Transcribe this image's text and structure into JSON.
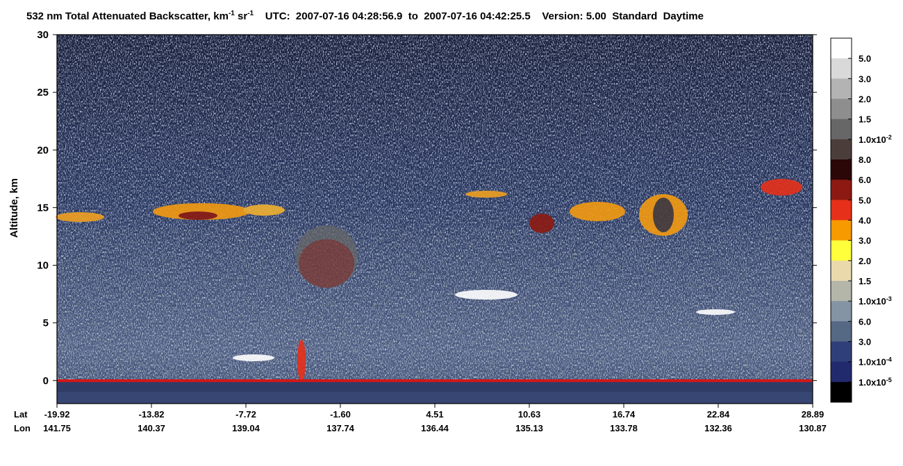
{
  "chart_data": {
    "type": "curtain",
    "title": [
      "532 nm Total Attenuated Backscatter, km",
      {
        "sup": "-1"
      },
      " sr",
      {
        "sup": "-1"
      },
      "    UTC:  2007-07-16 04:28:56.9  to  2007-07-16 04:42:25.5    Version: 5.00  Standard  Daytime"
    ],
    "y_label": "Altitude, km",
    "ylim": [
      -2,
      30
    ],
    "yticks": [
      0,
      5,
      10,
      15,
      20,
      25,
      30
    ],
    "x_rows": [
      "Lat",
      "Lon"
    ],
    "lat_ticks": [
      "-19.92",
      "-13.82",
      "-7.72",
      "-1.60",
      "4.51",
      "10.63",
      "16.74",
      "22.84",
      "28.89"
    ],
    "lon_ticks": [
      "141.75",
      "140.37",
      "139.04",
      "137.74",
      "136.44",
      "135.13",
      "133.78",
      "132.36",
      "130.87"
    ],
    "colorbar_colors": [
      "#ffffff",
      "#d9d9d9",
      "#b3b3b3",
      "#8e8e8e",
      "#676767",
      "#4b3d3a",
      "#2c0707",
      "#8c1a12",
      "#e6301a",
      "#f79a00",
      "#ffff3c",
      "#ead9ab",
      "#b4b6aa",
      "#8494a4",
      "#556884",
      "#2f4079",
      "#222a6e",
      "#000000"
    ],
    "colorbar_labels": [
      {
        "text": "5.0"
      },
      {
        "text": "3.0"
      },
      {
        "text": "2.0"
      },
      {
        "text": "1.5"
      },
      {
        "text": "1.0x10",
        "sup": "-2"
      },
      {
        "text": "8.0"
      },
      {
        "text": "6.0"
      },
      {
        "text": "5.0"
      },
      {
        "text": "4.0"
      },
      {
        "text": "3.0"
      },
      {
        "text": "2.0"
      },
      {
        "text": "1.5"
      },
      {
        "text": "1.0x10",
        "sup": "-3"
      },
      {
        "text": "6.0"
      },
      {
        "text": "3.0"
      },
      {
        "text": "1.0x10",
        "sup": "-4"
      },
      {
        "text": "1.0x10",
        "sup": "-5"
      }
    ]
  }
}
